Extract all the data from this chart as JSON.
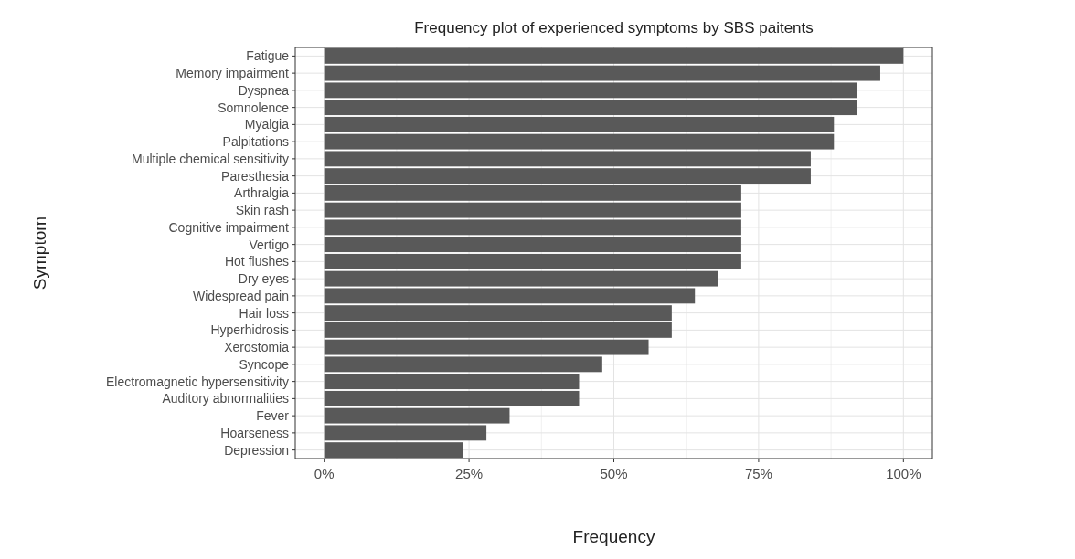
{
  "chart_data": {
    "type": "bar",
    "orientation": "horizontal",
    "title": "Frequency plot of experienced symptoms by SBS paitents",
    "xlabel": "Frequency",
    "ylabel": "Symptom",
    "categories": [
      "Fatigue",
      "Memory impairment",
      "Dyspnea",
      "Somnolence",
      "Myalgia",
      "Palpitations",
      "Multiple chemical sensitivity",
      "Paresthesia",
      "Arthralgia",
      "Skin rash",
      "Cognitive impairment",
      "Vertigo",
      "Hot flushes",
      "Dry eyes",
      "Widespread pain",
      "Hair loss",
      "Hyperhidrosis",
      "Xerostomia",
      "Syncope",
      "Electromagnetic hypersensitivity",
      "Auditory abnormalities",
      "Fever",
      "Hoarseness",
      "Depression"
    ],
    "values": [
      100,
      96,
      92,
      92,
      88,
      88,
      84,
      84,
      72,
      72,
      72,
      72,
      72,
      68,
      64,
      60,
      60,
      56,
      48,
      44,
      44,
      32,
      28,
      24
    ],
    "color": "#595959",
    "xlim": [
      -5,
      105
    ],
    "xticks": [
      {
        "value": 0,
        "label": "0%"
      },
      {
        "value": 25,
        "label": "25%"
      },
      {
        "value": 50,
        "label": "50%"
      },
      {
        "value": 75,
        "label": "75%"
      },
      {
        "value": 100,
        "label": "100%"
      }
    ],
    "grid": true
  }
}
